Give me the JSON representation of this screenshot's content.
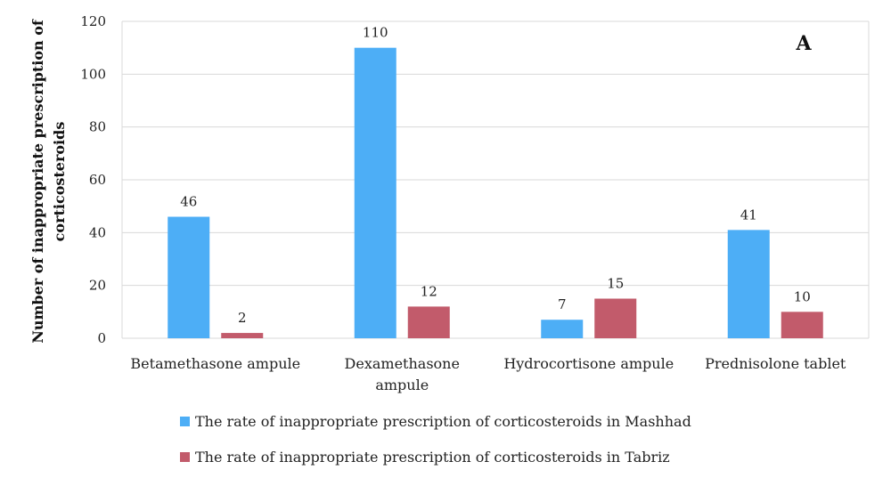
{
  "chart_data": {
    "type": "bar",
    "panel_label": "A",
    "ylabel_lines": [
      "Number of inappropriate prescription of",
      "corticosteroids"
    ],
    "xlabel": "",
    "ylim": [
      0,
      120
    ],
    "yticks": [
      0,
      20,
      40,
      60,
      80,
      100,
      120
    ],
    "grid": true,
    "legend_position": "bottom",
    "categories": [
      [
        "Betamethasone ampule"
      ],
      [
        "Dexamethasone",
        "ampule"
      ],
      [
        "Hydrocortisone ampule"
      ],
      [
        "Prednisolone tablet"
      ]
    ],
    "series": [
      {
        "name": "The rate of inappropriate prescription of corticosteroids in Mashhad",
        "color": "#4daef6",
        "values": [
          46,
          110,
          7,
          41
        ]
      },
      {
        "name": "The rate of inappropriate prescription of corticosteroids in Tabriz",
        "color": "#c25b6b",
        "values": [
          2,
          12,
          15,
          10
        ]
      }
    ]
  }
}
